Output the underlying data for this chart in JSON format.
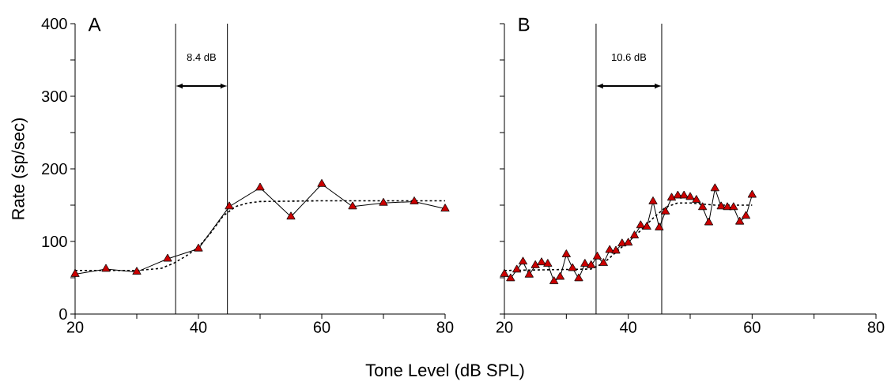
{
  "chart_data": [
    {
      "type": "line",
      "title": "A",
      "xlabel": "Tone Level (dB SPL)",
      "ylabel": "Rate (sp/sec)",
      "xlim": [
        20,
        80
      ],
      "ylim": [
        0,
        400
      ],
      "xticks": [
        20,
        {
          "value": 30,
          "label": null
        },
        40,
        {
          "value": 50,
          "label": null
        },
        60,
        {
          "value": 70,
          "label": null
        },
        80
      ],
      "yticks": [
        0,
        {
          "value": 50,
          "label": null
        },
        100,
        {
          "value": 150,
          "label": null
        },
        200,
        {
          "value": 250,
          "label": null
        },
        300,
        {
          "value": 350,
          "label": null
        },
        400
      ],
      "series": [
        {
          "color": "#cc0000",
          "marker": "triangle",
          "line_style": "solid",
          "x": [
            20,
            25,
            30,
            35,
            40,
            45,
            50,
            55,
            60,
            65,
            70,
            75,
            80
          ],
          "values": [
            55,
            62,
            58,
            76,
            90,
            148,
            174,
            134,
            179,
            148,
            153,
            155,
            145
          ]
        },
        {
          "color": "#000000",
          "marker": "none",
          "line_style": "dashed",
          "x": [
            20,
            30,
            34,
            36,
            38,
            40,
            42,
            44,
            46,
            48,
            50,
            60,
            80
          ],
          "values": [
            60,
            60,
            63,
            70,
            80,
            92,
            112,
            135,
            148,
            153,
            155,
            156,
            156
          ]
        }
      ],
      "ref_lines": [
        {
          "axis": "x",
          "value": 36.3,
          "color": "#000000"
        },
        {
          "axis": "x",
          "value": 44.7,
          "color": "#000000"
        }
      ],
      "annotations": [
        "8.4 dB"
      ],
      "grid": false
    },
    {
      "type": "line",
      "title": "B",
      "xlim": [
        20,
        80
      ],
      "ylim": [
        0,
        400
      ],
      "xticks": [
        20,
        {
          "value": 30,
          "label": null
        },
        40,
        {
          "value": 50,
          "label": null
        },
        60,
        {
          "value": 70,
          "label": null
        },
        80
      ],
      "yticks": [
        {
          "value": 0,
          "label": null
        },
        {
          "value": 50,
          "label": null
        },
        {
          "value": 100,
          "label": null
        },
        {
          "value": 150,
          "label": null
        },
        {
          "value": 200,
          "label": null
        },
        {
          "value": 250,
          "label": null
        },
        {
          "value": 300,
          "label": null
        },
        {
          "value": 350,
          "label": null
        },
        {
          "value": 400,
          "label": null
        }
      ],
      "tick_labels": "x",
      "series": [
        {
          "color": "#cc0000",
          "marker": "triangle",
          "line_style": "solid",
          "x": [
            20,
            21,
            22,
            23,
            24,
            25,
            26,
            27,
            28,
            29,
            30,
            31,
            32,
            33,
            34,
            35,
            36,
            37,
            38,
            39,
            40,
            41,
            42,
            43,
            44,
            45,
            46,
            47,
            48,
            49,
            50,
            51,
            52,
            53,
            54,
            55,
            56,
            57,
            58,
            59,
            60
          ],
          "values": [
            55,
            49,
            61,
            72,
            54,
            67,
            71,
            69,
            45,
            51,
            82,
            63,
            49,
            69,
            67,
            79,
            70,
            88,
            87,
            97,
            98,
            108,
            122,
            120,
            155,
            119,
            141,
            160,
            163,
            163,
            161,
            157,
            147,
            126,
            173,
            148,
            147,
            147,
            127,
            135,
            164
          ]
        },
        {
          "color": "#000000",
          "marker": "none",
          "line_style": "dashed",
          "x": [
            20,
            34,
            36,
            38,
            40,
            42,
            44,
            46,
            48,
            50,
            54,
            60
          ],
          "values": [
            60,
            62,
            70,
            85,
            100,
            115,
            132,
            147,
            153,
            153,
            150,
            150
          ]
        }
      ],
      "ref_lines": [
        {
          "axis": "x",
          "value": 34.8,
          "color": "#000000"
        },
        {
          "axis": "x",
          "value": 45.4,
          "color": "#000000"
        }
      ],
      "annotations": [
        "10.6 dB"
      ],
      "grid": false
    }
  ]
}
